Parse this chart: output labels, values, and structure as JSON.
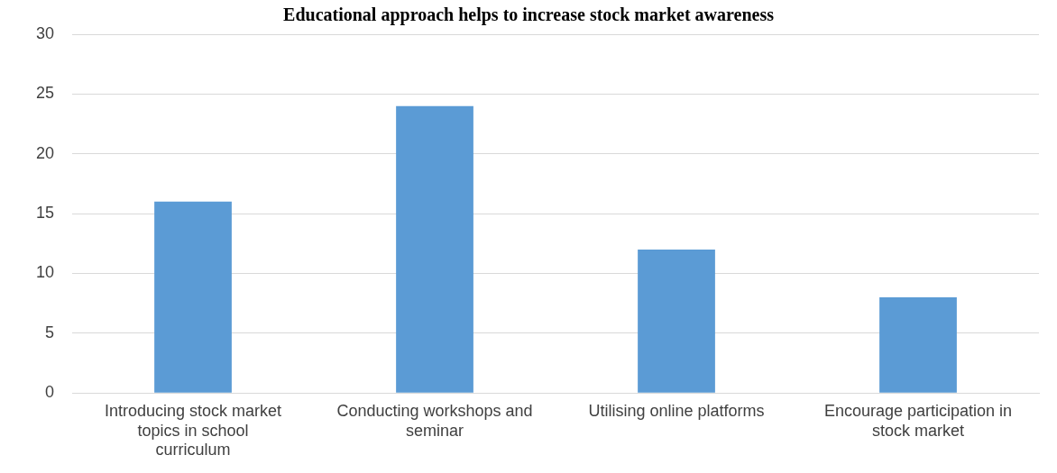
{
  "chart_data": {
    "type": "bar",
    "title": "Educational approach helps to increase stock market awareness",
    "categories": [
      "Introducing stock market topics in school curriculum",
      "Conducting workshops and seminar",
      "Utilising online platforms",
      "Encourage participation in stock market"
    ],
    "values": [
      16,
      24,
      12,
      8
    ],
    "color": "#5b9bd5",
    "ylim": [
      0,
      30
    ],
    "yticks": [
      0,
      5,
      10,
      15,
      20,
      25,
      30
    ],
    "grid": "y",
    "legend": false
  }
}
